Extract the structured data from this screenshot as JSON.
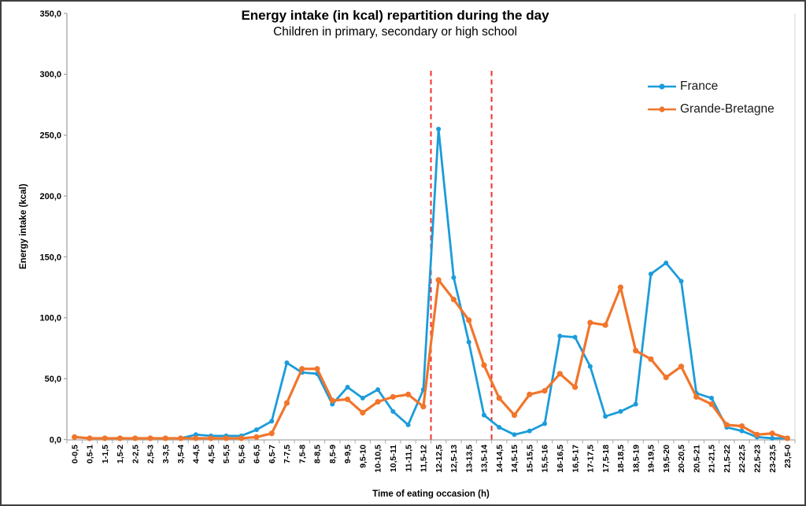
{
  "chart_data": {
    "type": "line",
    "title": "Energy intake (in kcal) repartition during the day",
    "subtitle": "Children in primary, secondary or high school",
    "xlabel": "Time of eating occasion (h)",
    "ylabel": "Energy intake (kcal)",
    "ylim": [
      0,
      350
    ],
    "ytick_step": 50,
    "ytick_labels": [
      "0,0",
      "50,0",
      "100,0",
      "150,0",
      "200,0",
      "250,0",
      "300,0",
      "350,0"
    ],
    "grid": false,
    "legend_position": "top-right",
    "categories": [
      "0-0,5",
      "0,5-1",
      "1-1,5",
      "1,5-2",
      "2-2,5",
      "2,5-3",
      "3-3,5",
      "3,5-4",
      "4-4,5",
      "4,5-5",
      "5-5,5",
      "5,5-6",
      "6-6,5",
      "6,5-7",
      "7-7,5",
      "7,5-8",
      "8-8,5",
      "8,5-9",
      "9-9,5",
      "9,5-10",
      "10-10,5",
      "10,5-11",
      "11-11,5",
      "11,5-12",
      "12-12,5",
      "12,5-13",
      "13-13,5",
      "13,5-14",
      "14-14,5",
      "14,5-15",
      "15-15,5",
      "15,5-16",
      "16-16,5",
      "16,5-17",
      "17-17,5",
      "17,5-18",
      "18-18,5",
      "18,5-19",
      "19-19,5",
      "19,5-20",
      "20-20,5",
      "20,5-21",
      "21-21,5",
      "21,5-22",
      "22-22,5",
      "22,5-23",
      "23-23,5",
      "23,5-0"
    ],
    "series": [
      {
        "name": "France",
        "color": "#1b9cda",
        "marker": "circle",
        "values": [
          2,
          1,
          1,
          1,
          1,
          1,
          1,
          1,
          4,
          3,
          3,
          3,
          8,
          15,
          63,
          55,
          54,
          29,
          43,
          34,
          41,
          23,
          12,
          41,
          255,
          133,
          80,
          20,
          10,
          4,
          7,
          13,
          85,
          84,
          60,
          19,
          23,
          29,
          136,
          145,
          130,
          38,
          34,
          10,
          7,
          2,
          1,
          1
        ]
      },
      {
        "name": "Grande-Bretagne",
        "color": "#f1752b",
        "marker": "circle",
        "values": [
          2,
          1,
          1,
          1,
          1,
          1,
          1,
          1,
          1,
          1,
          1,
          1,
          2,
          5,
          30,
          58,
          58,
          32,
          33,
          22,
          31,
          35,
          37,
          27,
          131,
          115,
          98,
          61,
          34,
          20,
          37,
          40,
          54,
          43,
          96,
          94,
          125,
          73,
          66,
          51,
          60,
          35,
          29,
          12,
          11,
          4,
          5,
          1
        ]
      }
    ],
    "reference_lines": {
      "orientation": "vertical",
      "style": "dashed",
      "color": "#f5302b",
      "positions_h": [
        12,
        14
      ]
    }
  },
  "colors": {
    "axis": "#a6a6a6",
    "plot_right_border": "#d4d4d4",
    "text": "#000000"
  }
}
